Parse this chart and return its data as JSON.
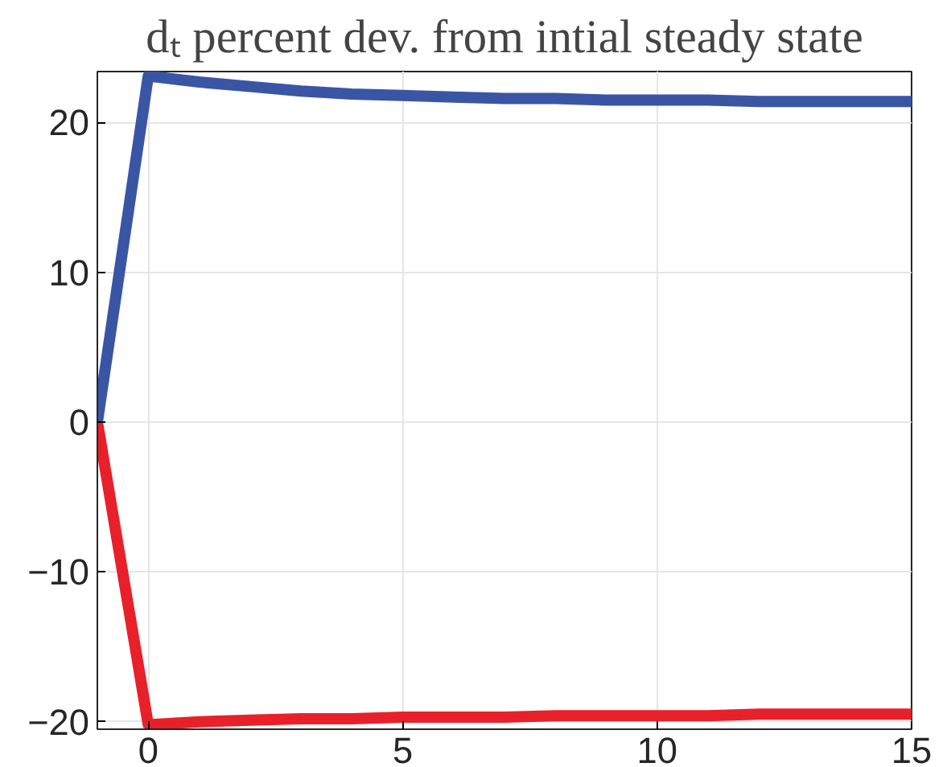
{
  "chart_data": {
    "type": "line",
    "title": "dₜ percent dev. from intial steady state",
    "x": [
      -1,
      0,
      1,
      2,
      3,
      4,
      5,
      6,
      7,
      8,
      9,
      10,
      11,
      12,
      13,
      14,
      15
    ],
    "series": [
      {
        "color": "#3a55a4",
        "values": [
          0,
          23.1,
          22.7,
          22.4,
          22.1,
          21.9,
          21.8,
          21.7,
          21.6,
          21.6,
          21.5,
          21.5,
          21.5,
          21.4,
          21.4,
          21.4,
          21.4
        ]
      },
      {
        "color": "#e8202a",
        "values": [
          0,
          -20.2,
          -20.0,
          -19.9,
          -19.8,
          -19.8,
          -19.7,
          -19.7,
          -19.7,
          -19.6,
          -19.6,
          -19.6,
          -19.6,
          -19.5,
          -19.5,
          -19.5,
          -19.5
        ]
      }
    ],
    "xlim": [
      -1,
      15
    ],
    "ylim": [
      -20.5,
      23.4
    ],
    "xticks": [
      0,
      5,
      10,
      15
    ],
    "yticks": [
      -20,
      -10,
      0,
      10,
      20
    ],
    "grid": true,
    "marker": "none",
    "line_style": "solid"
  }
}
